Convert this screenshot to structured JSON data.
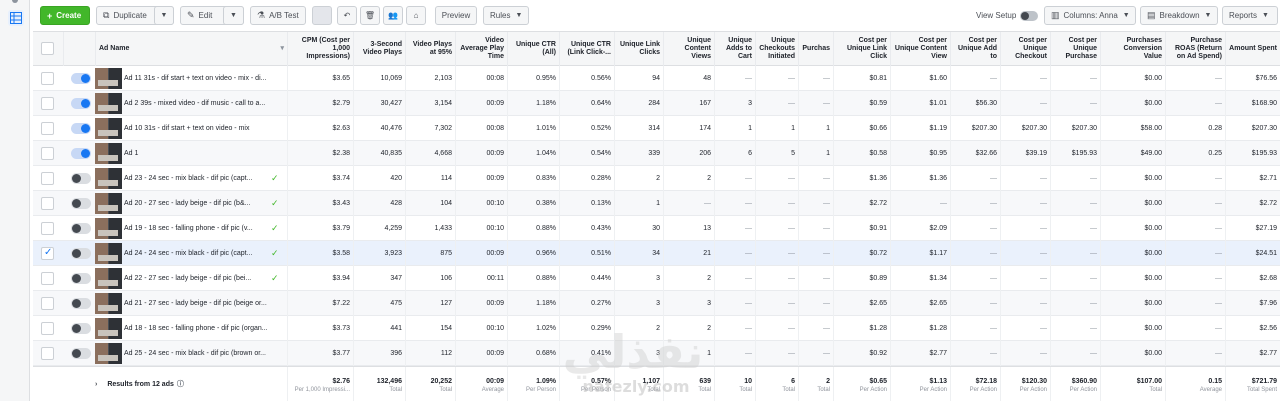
{
  "toolbar": {
    "create_label": "Create",
    "duplicate_label": "Duplicate",
    "edit_label": "Edit",
    "ab_test_label": "A/B Test",
    "preview_label": "Preview",
    "rules_label": "Rules",
    "view_setup_label": "View Setup",
    "columns_label": "Columns: Anna",
    "breakdown_label": "Breakdown",
    "reports_label": "Reports"
  },
  "columns": [
    "Ad Name",
    "CPM (Cost per 1,000 Impressions)",
    "3-Second Video Plays",
    "Video Plays at 95%",
    "Video Average Play Time",
    "Unique CTR (All)",
    "Unique CTR (Link Click-...",
    "Unique Link Clicks",
    "Unique Content Views",
    "Unique Adds to Cart",
    "Unique Checkouts Initiated",
    "Purchas",
    "Cost per Unique Link Click",
    "Cost per Unique Content View",
    "Cost per Unique Add to",
    "Cost per Unique Checkout",
    "Cost per Unique Purchase",
    "Purchases Conversion Value",
    "Purchase ROAS (Return on Ad Spend)",
    "Amount Spent"
  ],
  "rows": [
    {
      "name": "Ad 11 31s - dif start + text on video - mix - di...",
      "active": true,
      "checked": false,
      "approved": false,
      "values": [
        "$3.65",
        "10,069",
        "2,103",
        "00:08",
        "0.95%",
        "0.56%",
        "94",
        "48",
        "—",
        "—",
        "—",
        "$0.81",
        "$1.60",
        "—",
        "—",
        "—",
        "$0.00",
        "—",
        "$76.56"
      ]
    },
    {
      "name": "Ad 2 39s - mixed video - dif music - call to a...",
      "active": true,
      "checked": false,
      "approved": false,
      "values": [
        "$2.79",
        "30,427",
        "3,154",
        "00:09",
        "1.18%",
        "0.64%",
        "284",
        "167",
        "3",
        "—",
        "—",
        "$0.59",
        "$1.01",
        "$56.30",
        "—",
        "—",
        "$0.00",
        "—",
        "$168.90"
      ]
    },
    {
      "name": "Ad 10 31s - dif start + text on video - mix",
      "active": true,
      "checked": false,
      "approved": false,
      "values": [
        "$2.63",
        "40,476",
        "7,302",
        "00:08",
        "1.01%",
        "0.52%",
        "314",
        "174",
        "1",
        "1",
        "1",
        "$0.66",
        "$1.19",
        "$207.30",
        "$207.30",
        "$207.30",
        "$58.00",
        "0.28",
        "$207.30"
      ]
    },
    {
      "name": "Ad 1",
      "active": true,
      "checked": false,
      "approved": false,
      "values": [
        "$2.38",
        "40,835",
        "4,668",
        "00:09",
        "1.04%",
        "0.54%",
        "339",
        "206",
        "6",
        "5",
        "1",
        "$0.58",
        "$0.95",
        "$32.66",
        "$39.19",
        "$195.93",
        "$49.00",
        "0.25",
        "$195.93"
      ]
    },
    {
      "name": "Ad 23 - 24 sec - mix black - dif pic (capt...",
      "active": false,
      "checked": false,
      "approved": true,
      "values": [
        "$3.74",
        "420",
        "114",
        "00:09",
        "0.83%",
        "0.28%",
        "2",
        "2",
        "—",
        "—",
        "—",
        "$1.36",
        "$1.36",
        "—",
        "—",
        "—",
        "$0.00",
        "—",
        "$2.71"
      ]
    },
    {
      "name": "Ad 20 - 27 sec - lady beige - dif pic (b&...",
      "active": false,
      "checked": false,
      "approved": true,
      "values": [
        "$3.43",
        "428",
        "104",
        "00:10",
        "0.38%",
        "0.13%",
        "1",
        "—",
        "—",
        "—",
        "—",
        "$2.72",
        "—",
        "—",
        "—",
        "—",
        "$0.00",
        "—",
        "$2.72"
      ]
    },
    {
      "name": "Ad 19 - 18 sec - falling phone - dif pic (v...",
      "active": false,
      "checked": false,
      "approved": true,
      "values": [
        "$3.79",
        "4,259",
        "1,433",
        "00:10",
        "0.88%",
        "0.43%",
        "30",
        "13",
        "—",
        "—",
        "—",
        "$0.91",
        "$2.09",
        "—",
        "—",
        "—",
        "$0.00",
        "—",
        "$27.19"
      ]
    },
    {
      "name": "Ad 24 - 24 sec - mix black - dif pic (capt...",
      "active": false,
      "checked": true,
      "approved": true,
      "values": [
        "$3.58",
        "3,923",
        "875",
        "00:09",
        "0.96%",
        "0.51%",
        "34",
        "21",
        "—",
        "—",
        "—",
        "$0.72",
        "$1.17",
        "—",
        "—",
        "—",
        "$0.00",
        "—",
        "$24.51"
      ]
    },
    {
      "name": "Ad 22 - 27 sec - lady beige - dif pic (bei...",
      "active": false,
      "checked": false,
      "approved": true,
      "values": [
        "$3.94",
        "347",
        "106",
        "00:11",
        "0.88%",
        "0.44%",
        "3",
        "2",
        "—",
        "—",
        "—",
        "$0.89",
        "$1.34",
        "—",
        "—",
        "—",
        "$0.00",
        "—",
        "$2.68"
      ]
    },
    {
      "name": "Ad 21 - 27 sec - lady beige - dif pic (beige or...",
      "active": false,
      "checked": false,
      "approved": false,
      "values": [
        "$7.22",
        "475",
        "127",
        "00:09",
        "1.18%",
        "0.27%",
        "3",
        "3",
        "—",
        "—",
        "—",
        "$2.65",
        "$2.65",
        "—",
        "—",
        "—",
        "$0.00",
        "—",
        "$7.96"
      ]
    },
    {
      "name": "Ad 18 - 18 sec - falling phone - dif pic (organ...",
      "active": false,
      "checked": false,
      "approved": false,
      "values": [
        "$3.73",
        "441",
        "154",
        "00:10",
        "1.02%",
        "0.29%",
        "2",
        "2",
        "—",
        "—",
        "—",
        "$1.28",
        "$1.28",
        "—",
        "—",
        "—",
        "$0.00",
        "—",
        "$2.56"
      ]
    },
    {
      "name": "Ad 25 - 24 sec - mix black - dif pic (brown or...",
      "active": false,
      "checked": false,
      "approved": false,
      "values": [
        "$3.77",
        "396",
        "112",
        "00:09",
        "0.68%",
        "0.41%",
        "3",
        "1",
        "—",
        "—",
        "—",
        "$0.92",
        "$2.77",
        "—",
        "—",
        "—",
        "$0.00",
        "—",
        "$2.77"
      ]
    }
  ],
  "footer": {
    "results_label": "Results from 12 ads",
    "info_icon": "info-icon",
    "cells": [
      {
        "value": "$2.76",
        "sub": "Per 1,000 Impressi..."
      },
      {
        "value": "132,496",
        "sub": "Total"
      },
      {
        "value": "20,252",
        "sub": "Total"
      },
      {
        "value": "00:09",
        "sub": "Average"
      },
      {
        "value": "1.09%",
        "sub": "Per Person"
      },
      {
        "value": "0.57%",
        "sub": "Per Person"
      },
      {
        "value": "1,107",
        "sub": "Total"
      },
      {
        "value": "639",
        "sub": "Total"
      },
      {
        "value": "10",
        "sub": "Total"
      },
      {
        "value": "6",
        "sub": "Total"
      },
      {
        "value": "2",
        "sub": "Total"
      },
      {
        "value": "$0.65",
        "sub": "Per Action"
      },
      {
        "value": "$1.13",
        "sub": "Per Action"
      },
      {
        "value": "$72.18",
        "sub": "Per Action"
      },
      {
        "value": "$120.30",
        "sub": "Per Action"
      },
      {
        "value": "$360.90",
        "sub": "Per Action"
      },
      {
        "value": "$107.00",
        "sub": "Total"
      },
      {
        "value": "0.15",
        "sub": "Average"
      },
      {
        "value": "$721.79",
        "sub": "Total Spent"
      }
    ]
  },
  "watermark": {
    "arabic": "نفذلي",
    "latin": "nafezly.com"
  },
  "colors": {
    "create_green": "#42b72a",
    "toggle_blue": "#1877f2",
    "header_bg": "#f5f6f7",
    "selected_row": "#eaf1fc"
  }
}
